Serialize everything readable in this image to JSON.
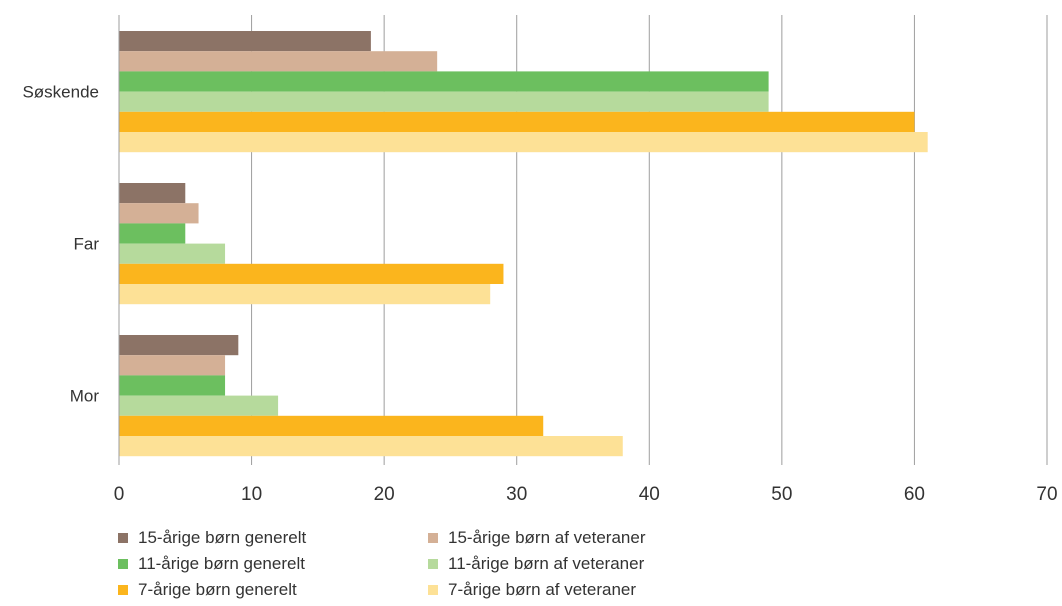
{
  "chart_data": {
    "type": "bar",
    "orientation": "horizontal",
    "categories": [
      "Søskende",
      "Far",
      "Mor"
    ],
    "series": [
      {
        "name": "15-årige børn generelt",
        "color": "#8c7366",
        "values": [
          19,
          5,
          9
        ]
      },
      {
        "name": "15-årige børn af veteraner",
        "color": "#d4b096",
        "values": [
          24,
          6,
          8
        ]
      },
      {
        "name": "11-årige børn generelt",
        "color": "#6cbf5f",
        "values": [
          49,
          5,
          8
        ]
      },
      {
        "name": "11-årige børn af veteraner",
        "color": "#b6da9c",
        "values": [
          49,
          8,
          12
        ]
      },
      {
        "name": "7-årige børn generelt",
        "color": "#fbb51d",
        "values": [
          60,
          29,
          32
        ]
      },
      {
        "name": "7-årige børn af veteraner",
        "color": "#fde196",
        "values": [
          61,
          28,
          38
        ]
      }
    ],
    "xlim": [
      0,
      70
    ],
    "xticks": [
      "0",
      "10",
      "20",
      "30",
      "40",
      "50",
      "60",
      "70"
    ],
    "grid": true,
    "legend_position": "bottom",
    "title": "",
    "xlabel": "",
    "ylabel": ""
  }
}
